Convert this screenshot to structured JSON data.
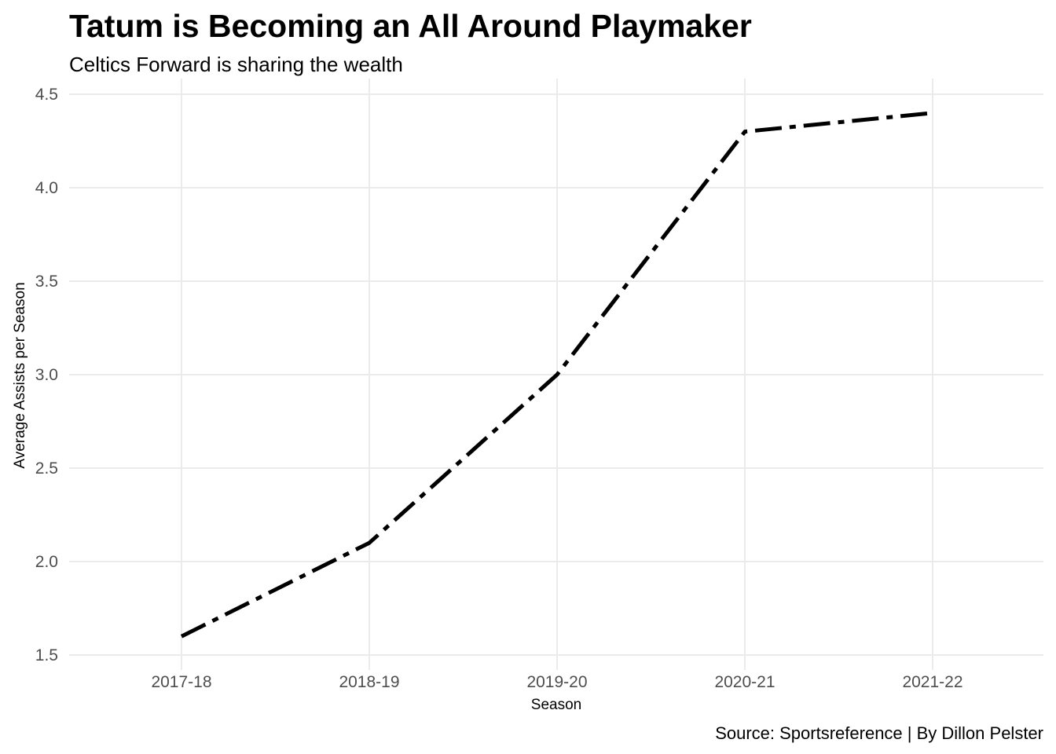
{
  "chart_data": {
    "type": "line",
    "title": "Tatum is Becoming an All Around Playmaker",
    "subtitle": "Celtics Forward is sharing the wealth",
    "xlabel": "Season",
    "ylabel": "Average Assists per Season",
    "caption": "Source: Sportsreference | By Dillon Pelster",
    "categories": [
      "2017-18",
      "2018-19",
      "2019-20",
      "2020-21",
      "2021-22"
    ],
    "values": [
      1.6,
      2.1,
      3.0,
      4.3,
      4.4
    ],
    "y_ticks": [
      "1.5",
      "2.0",
      "2.5",
      "3.0",
      "3.5",
      "4.0",
      "4.5"
    ],
    "ylim": [
      1.5,
      4.5
    ],
    "grid": true,
    "line_color": "#000000",
    "line_style": "dot-dash"
  }
}
